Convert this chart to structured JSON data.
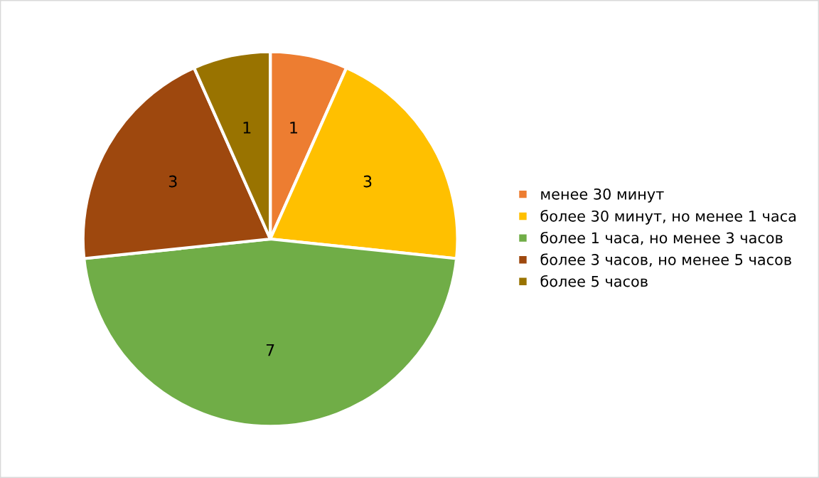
{
  "chart_data": {
    "type": "pie",
    "categories": [
      "менее 30 минут",
      "более 30 минут, но менее 1 часа",
      "более 1 часа, но менее 3 часов",
      "более 3 часов, но менее 5 часов",
      "более 5 часов"
    ],
    "values": [
      1,
      3,
      7,
      3,
      1
    ],
    "colors": [
      "#ed7d31",
      "#ffc000",
      "#70ad47",
      "#9e480e",
      "#997300"
    ],
    "data_labels": true,
    "legend": "right"
  }
}
